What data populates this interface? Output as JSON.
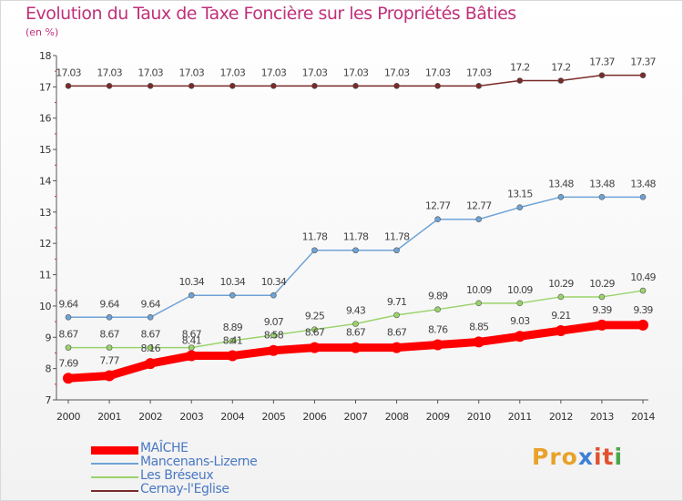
{
  "title": "Evolution du Taux de Taxe Foncière sur les Propriétés Bâties",
  "subtitle": "(en %)",
  "logo": {
    "text": "Proxiti",
    "parts": [
      "Pro",
      "x",
      "it",
      "i"
    ]
  },
  "colors": {
    "title": "#c0307a",
    "axis": "#555555",
    "label": "#555555"
  },
  "chart_data": {
    "type": "line",
    "x": [
      "2000",
      "2001",
      "2002",
      "2003",
      "2004",
      "2005",
      "2006",
      "2007",
      "2008",
      "2009",
      "2010",
      "2011",
      "2012",
      "2013",
      "2014"
    ],
    "ylim": [
      7,
      18
    ],
    "yticks": [
      7,
      8,
      9,
      10,
      11,
      12,
      13,
      14,
      15,
      16,
      17,
      18
    ],
    "ytick_labels": [
      "7",
      "8",
      "9",
      "10",
      "11",
      "12",
      "13",
      "14",
      "15",
      "16",
      "17",
      "18"
    ],
    "grid": false,
    "legend_position": "bottom-left",
    "series": [
      {
        "name": "MAÎCHE",
        "color": "#ff0000",
        "width": "thick",
        "values": [
          7.69,
          7.77,
          8.16,
          8.41,
          8.41,
          8.58,
          8.67,
          8.67,
          8.67,
          8.76,
          8.85,
          9.03,
          9.21,
          9.39,
          9.39
        ],
        "labels": [
          "7.69",
          "7.77",
          "8.16",
          "8.41",
          "8.41",
          "8.58",
          "8.67",
          "8.67",
          "8.67",
          "8.76",
          "8.85",
          "9.03",
          "9.21",
          "9.39",
          "9.39"
        ]
      },
      {
        "name": "Mancenans-Lizerne",
        "color": "#6fa3d6",
        "width": "thin",
        "values": [
          9.64,
          9.64,
          9.64,
          10.34,
          10.34,
          10.34,
          11.78,
          11.78,
          11.78,
          12.77,
          12.77,
          13.15,
          13.48,
          13.48,
          13.48
        ],
        "labels": [
          "9.64",
          "9.64",
          "9.64",
          "10.34",
          "10.34",
          "10.34",
          "11.78",
          "11.78",
          "11.78",
          "12.77",
          "12.77",
          "13.15",
          "13.48",
          "13.48",
          "13.48"
        ]
      },
      {
        "name": "Les Bréseux",
        "color": "#9ad36b",
        "width": "thin",
        "values": [
          8.67,
          8.67,
          8.67,
          8.67,
          8.89,
          9.07,
          9.25,
          9.43,
          9.71,
          9.89,
          10.09,
          10.09,
          10.29,
          10.29,
          10.49
        ],
        "labels": [
          "8.67",
          "8.67",
          "8.67",
          "8.67",
          "8.89",
          "9.07",
          "9.25",
          "9.43",
          "9.71",
          "9.89",
          "10.09",
          "10.09",
          "10.29",
          "10.29",
          "10.49"
        ]
      },
      {
        "name": "Cernay-l'Eglise",
        "color": "#7a2a2a",
        "width": "thin",
        "values": [
          17.03,
          17.03,
          17.03,
          17.03,
          17.03,
          17.03,
          17.03,
          17.03,
          17.03,
          17.03,
          17.03,
          17.2,
          17.2,
          17.37,
          17.37
        ],
        "labels": [
          "17.03",
          "17.03",
          "17.03",
          "17.03",
          "17.03",
          "17.03",
          "17.03",
          "17.03",
          "17.03",
          "17.03",
          "17.03",
          "17.2",
          "17.2",
          "17.37",
          "17.37"
        ]
      }
    ]
  }
}
